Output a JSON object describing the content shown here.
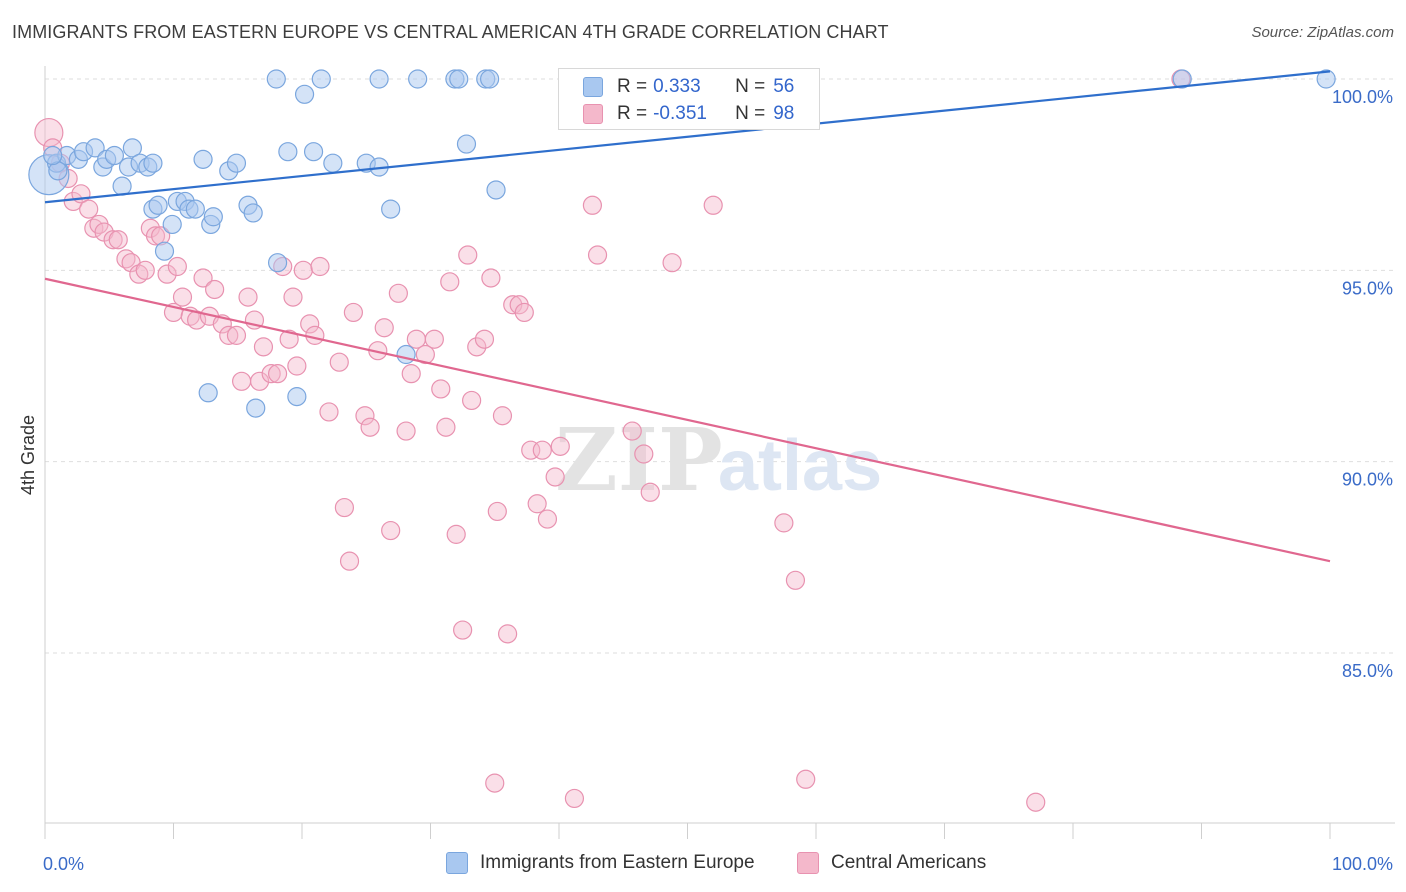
{
  "title": "IMMIGRANTS FROM EASTERN EUROPE VS CENTRAL AMERICAN 4TH GRADE CORRELATION CHART",
  "source": "Source: ZipAtlas.com",
  "watermark": {
    "zip": "ZIP",
    "atlas": "atlas"
  },
  "legend": {
    "series1": {
      "r_label": "R =",
      "r_value": "0.333",
      "n_label": "N =",
      "n_value": "56"
    },
    "series2": {
      "r_label": "R =",
      "r_value": "-0.351",
      "n_label": "N =",
      "n_value": "98"
    }
  },
  "colors": {
    "blue_fill": "#a9c8f0",
    "blue_stroke": "#7aa6de",
    "blue_line": "#2f6fcc",
    "pink_fill": "#f4b8cb",
    "pink_stroke": "#e892b0",
    "pink_line": "#e0678f",
    "axis_text": "#3a6bc8",
    "grid": "#dedede"
  },
  "chart_data": {
    "type": "scatter",
    "title": "IMMIGRANTS FROM EASTERN EUROPE VS CENTRAL AMERICAN 4TH GRADE CORRELATION CHART",
    "xlabel": "",
    "ylabel": "4th Grade",
    "xlim": [
      0,
      100
    ],
    "ylim": [
      80.5,
      100.4
    ],
    "x_tick_labels": [
      "0.0%",
      "100.0%"
    ],
    "y_ticks": [
      85,
      90,
      95,
      100
    ],
    "y_tick_labels": [
      "85.0%",
      "90.0%",
      "95.0%",
      "100.0%"
    ],
    "grid": true,
    "legend_position": "top-center",
    "series": [
      {
        "name": "Immigrants from Eastern Europe",
        "color": "#a9c8f0",
        "trend": {
          "x": [
            0,
            100
          ],
          "y": [
            96.78,
            100.2
          ]
        },
        "points": [
          [
            0.3,
            97.5
          ],
          [
            0.9,
            97.8
          ],
          [
            1.7,
            98.0
          ],
          [
            2.6,
            97.9
          ],
          [
            3.0,
            98.1
          ],
          [
            3.9,
            98.2
          ],
          [
            4.5,
            97.7
          ],
          [
            4.8,
            97.9
          ],
          [
            5.4,
            98.0
          ],
          [
            6.0,
            97.2
          ],
          [
            6.5,
            97.7
          ],
          [
            6.8,
            98.2
          ],
          [
            7.4,
            97.8
          ],
          [
            8.0,
            97.7
          ],
          [
            8.4,
            97.8
          ],
          [
            8.4,
            96.6
          ],
          [
            8.8,
            96.7
          ],
          [
            9.3,
            95.5
          ],
          [
            9.9,
            96.2
          ],
          [
            10.3,
            96.8
          ],
          [
            10.9,
            96.8
          ],
          [
            11.2,
            96.6
          ],
          [
            11.7,
            96.6
          ],
          [
            12.3,
            97.9
          ],
          [
            12.9,
            96.2
          ],
          [
            13.1,
            96.4
          ],
          [
            14.3,
            97.6
          ],
          [
            14.9,
            97.8
          ],
          [
            15.8,
            96.7
          ],
          [
            16.2,
            96.5
          ],
          [
            18.0,
            100.0
          ],
          [
            18.1,
            95.2
          ],
          [
            18.9,
            98.1
          ],
          [
            20.2,
            99.6
          ],
          [
            20.9,
            98.1
          ],
          [
            21.5,
            100.0
          ],
          [
            22.4,
            97.8
          ],
          [
            25.0,
            97.8
          ],
          [
            26.0,
            97.7
          ],
          [
            26.0,
            100.0
          ],
          [
            26.9,
            96.6
          ],
          [
            29.0,
            100.0
          ],
          [
            31.9,
            100.0
          ],
          [
            32.2,
            100.0
          ],
          [
            34.3,
            100.0
          ],
          [
            34.6,
            100.0
          ],
          [
            32.8,
            98.3
          ],
          [
            35.1,
            97.1
          ],
          [
            28.1,
            92.8
          ],
          [
            12.7,
            91.8
          ],
          [
            16.4,
            91.4
          ],
          [
            19.6,
            91.7
          ],
          [
            88.5,
            100.0
          ],
          [
            99.7,
            100.0
          ],
          [
            1.0,
            97.6
          ],
          [
            0.6,
            98.0
          ]
        ]
      },
      {
        "name": "Central Americans",
        "color": "#f4b8cb",
        "trend": {
          "x": [
            0,
            100
          ],
          "y": [
            94.78,
            87.4
          ]
        },
        "points": [
          [
            0.3,
            98.6
          ],
          [
            0.6,
            98.2
          ],
          [
            1.2,
            97.8
          ],
          [
            1.8,
            97.4
          ],
          [
            2.2,
            96.8
          ],
          [
            2.8,
            97.0
          ],
          [
            3.4,
            96.6
          ],
          [
            3.8,
            96.1
          ],
          [
            4.2,
            96.2
          ],
          [
            4.6,
            96.0
          ],
          [
            5.3,
            95.8
          ],
          [
            5.7,
            95.8
          ],
          [
            6.3,
            95.3
          ],
          [
            6.7,
            95.2
          ],
          [
            7.3,
            94.9
          ],
          [
            7.8,
            95.0
          ],
          [
            8.2,
            96.1
          ],
          [
            8.6,
            95.9
          ],
          [
            9.0,
            95.9
          ],
          [
            9.5,
            94.9
          ],
          [
            10.0,
            93.9
          ],
          [
            10.3,
            95.1
          ],
          [
            10.7,
            94.3
          ],
          [
            11.3,
            93.8
          ],
          [
            11.8,
            93.7
          ],
          [
            12.3,
            94.8
          ],
          [
            12.8,
            93.8
          ],
          [
            13.2,
            94.5
          ],
          [
            13.8,
            93.6
          ],
          [
            14.3,
            93.3
          ],
          [
            14.9,
            93.3
          ],
          [
            15.3,
            92.1
          ],
          [
            15.8,
            94.3
          ],
          [
            16.3,
            93.7
          ],
          [
            16.7,
            92.1
          ],
          [
            17.0,
            93.0
          ],
          [
            17.6,
            92.3
          ],
          [
            18.1,
            92.3
          ],
          [
            18.5,
            95.1
          ],
          [
            19.0,
            93.2
          ],
          [
            19.3,
            94.3
          ],
          [
            19.6,
            92.5
          ],
          [
            20.1,
            95.0
          ],
          [
            20.6,
            93.6
          ],
          [
            21.0,
            93.3
          ],
          [
            21.4,
            95.1
          ],
          [
            22.1,
            91.3
          ],
          [
            22.9,
            92.6
          ],
          [
            23.3,
            88.8
          ],
          [
            23.7,
            87.4
          ],
          [
            24.0,
            93.9
          ],
          [
            24.9,
            91.2
          ],
          [
            25.3,
            90.9
          ],
          [
            25.9,
            92.9
          ],
          [
            26.4,
            93.5
          ],
          [
            26.9,
            88.2
          ],
          [
            27.5,
            94.4
          ],
          [
            28.1,
            90.8
          ],
          [
            28.5,
            92.3
          ],
          [
            28.9,
            93.2
          ],
          [
            29.6,
            92.8
          ],
          [
            30.3,
            93.2
          ],
          [
            30.8,
            91.9
          ],
          [
            31.2,
            90.9
          ],
          [
            31.5,
            94.7
          ],
          [
            32.0,
            88.1
          ],
          [
            32.5,
            85.6
          ],
          [
            32.9,
            95.4
          ],
          [
            33.2,
            91.6
          ],
          [
            33.6,
            93.0
          ],
          [
            34.2,
            93.2
          ],
          [
            34.7,
            94.8
          ],
          [
            35.2,
            88.7
          ],
          [
            35.6,
            91.2
          ],
          [
            36.0,
            85.5
          ],
          [
            36.4,
            94.1
          ],
          [
            36.9,
            94.1
          ],
          [
            37.3,
            93.9
          ],
          [
            37.8,
            90.3
          ],
          [
            38.3,
            88.9
          ],
          [
            38.7,
            90.3
          ],
          [
            39.1,
            88.5
          ],
          [
            39.7,
            89.6
          ],
          [
            40.1,
            90.4
          ],
          [
            42.6,
            96.7
          ],
          [
            43.0,
            95.4
          ],
          [
            45.7,
            90.8
          ],
          [
            46.6,
            90.2
          ],
          [
            47.1,
            89.2
          ],
          [
            48.8,
            95.2
          ],
          [
            52.0,
            96.7
          ],
          [
            57.5,
            88.4
          ],
          [
            58.4,
            86.9
          ],
          [
            59.2,
            81.7
          ],
          [
            35.0,
            81.6
          ],
          [
            41.2,
            81.2
          ],
          [
            77.1,
            81.1
          ],
          [
            88.4,
            100.0
          ]
        ]
      }
    ]
  },
  "bottom_legend": {
    "item1": "Immigrants from Eastern Europe",
    "item2": "Central Americans"
  }
}
